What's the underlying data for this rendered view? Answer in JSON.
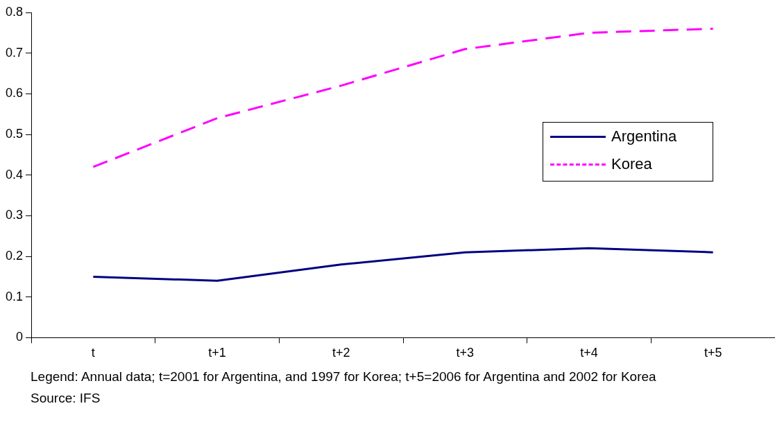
{
  "chart_data": {
    "type": "line",
    "categories": [
      "t",
      "t+1",
      "t+2",
      "t+3",
      "t+4",
      "t+5"
    ],
    "series": [
      {
        "name": "Argentina",
        "color": "#000080",
        "values": [
          0.15,
          0.14,
          0.18,
          0.21,
          0.22,
          0.21
        ],
        "line_style": "solid"
      },
      {
        "name": "Korea",
        "color": "#ff00ff",
        "values": [
          0.42,
          0.54,
          0.62,
          0.71,
          0.75,
          0.76
        ],
        "line_style": "dashed"
      }
    ],
    "ylim": [
      0,
      0.8
    ],
    "yticks": [
      0,
      0.1,
      0.2,
      0.3,
      0.4,
      0.5,
      0.6,
      0.7,
      0.8
    ],
    "grid": false,
    "legend": "right",
    "marker": "none",
    "annotations": [
      "Legend: Annual data;  t=2001 for Argentina, and 1997 for Korea; t+5=2006 for Argentina and 2002 for Korea",
      "Source: IFS"
    ]
  }
}
